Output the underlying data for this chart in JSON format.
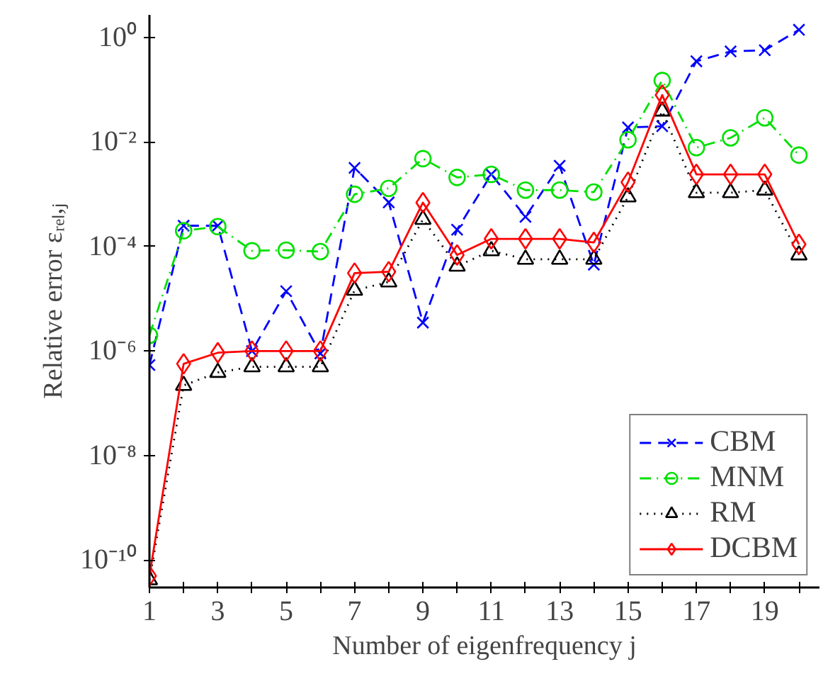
{
  "chart_data": {
    "type": "line",
    "xlabel": "Number of eigenfrequency j",
    "ylabel": "Relative error εᵣₑₗ,ⱼ",
    "log": "y",
    "grid": false,
    "legend": "bottom right",
    "x": [
      1,
      2,
      3,
      4,
      5,
      6,
      7,
      8,
      9,
      10,
      11,
      12,
      13,
      14,
      15,
      16,
      17,
      18,
      19,
      20
    ],
    "xlim": [
      1,
      20.6
    ],
    "ylim": [
      3e-11,
      2.7
    ],
    "xticks": [
      1,
      {
        "value": 2,
        "label": null
      },
      3,
      {
        "value": 4,
        "label": null
      },
      5,
      {
        "value": 6,
        "label": null
      },
      7,
      {
        "value": 8,
        "label": null
      },
      9,
      {
        "value": 10,
        "label": null
      },
      11,
      {
        "value": 12,
        "label": null
      },
      13,
      {
        "value": 14,
        "label": null
      },
      15,
      {
        "value": 16,
        "label": null
      },
      17,
      {
        "value": 18,
        "label": null
      },
      19,
      {
        "value": 20,
        "label": null
      }
    ],
    "yticks": [
      {
        "value": 1e-10,
        "label": "10⁻¹⁰"
      },
      {
        "value": 1e-08,
        "label": "10⁻⁸"
      },
      {
        "value": 1e-06,
        "label": "10⁻⁶"
      },
      {
        "value": 0.0001,
        "label": "10⁻⁴"
      },
      {
        "value": 0.01,
        "label": "10⁻²"
      },
      {
        "value": 1,
        "label": "10⁰"
      }
    ],
    "series": [
      {
        "name": "CBM",
        "color": "#0000ff",
        "marker": "cross",
        "line_style": "dashed",
        "values": [
          5.4e-07,
          0.00025,
          0.00025,
          1e-06,
          1.4e-05,
          9e-07,
          0.0032,
          0.0007,
          3.5e-06,
          0.00021,
          0.0024,
          0.00037,
          0.0035,
          4.5e-05,
          0.019,
          0.02,
          0.35,
          0.54,
          0.57,
          1.4
        ]
      },
      {
        "name": "MNM",
        "color": "#00e000",
        "marker": "circle",
        "line_style": "dashdot",
        "values": [
          2e-06,
          0.0002,
          0.00024,
          8.3e-05,
          8.5e-05,
          8e-05,
          0.001,
          0.0013,
          0.0048,
          0.0021,
          0.0024,
          0.0012,
          0.0012,
          0.0011,
          0.011,
          0.15,
          0.0078,
          0.012,
          0.029,
          0.0056
        ]
      },
      {
        "name": "RM",
        "color": "#000000",
        "marker": "triangle",
        "line_style": "dotted",
        "values": [
          4.2e-11,
          2.2e-07,
          3.9e-07,
          5e-07,
          5e-07,
          5e-07,
          1.45e-05,
          2.1e-05,
          0.00033,
          4.2e-05,
          8.3e-05,
          5.7e-05,
          5.7e-05,
          5.7e-05,
          0.00089,
          0.039,
          0.00107,
          0.00107,
          0.0012,
          6.9e-05
        ]
      },
      {
        "name": "DCBM",
        "color": "#ff0000",
        "marker": "diamond",
        "line_style": "solid",
        "values": [
          5e-11,
          5.7e-07,
          9.3e-07,
          1e-06,
          1e-06,
          1e-06,
          3.1e-05,
          3.3e-05,
          0.00069,
          6.9e-05,
          0.00014,
          0.00014,
          0.00014,
          0.00012,
          0.0017,
          0.079,
          0.0024,
          0.0024,
          0.0024,
          0.00011
        ]
      }
    ]
  }
}
